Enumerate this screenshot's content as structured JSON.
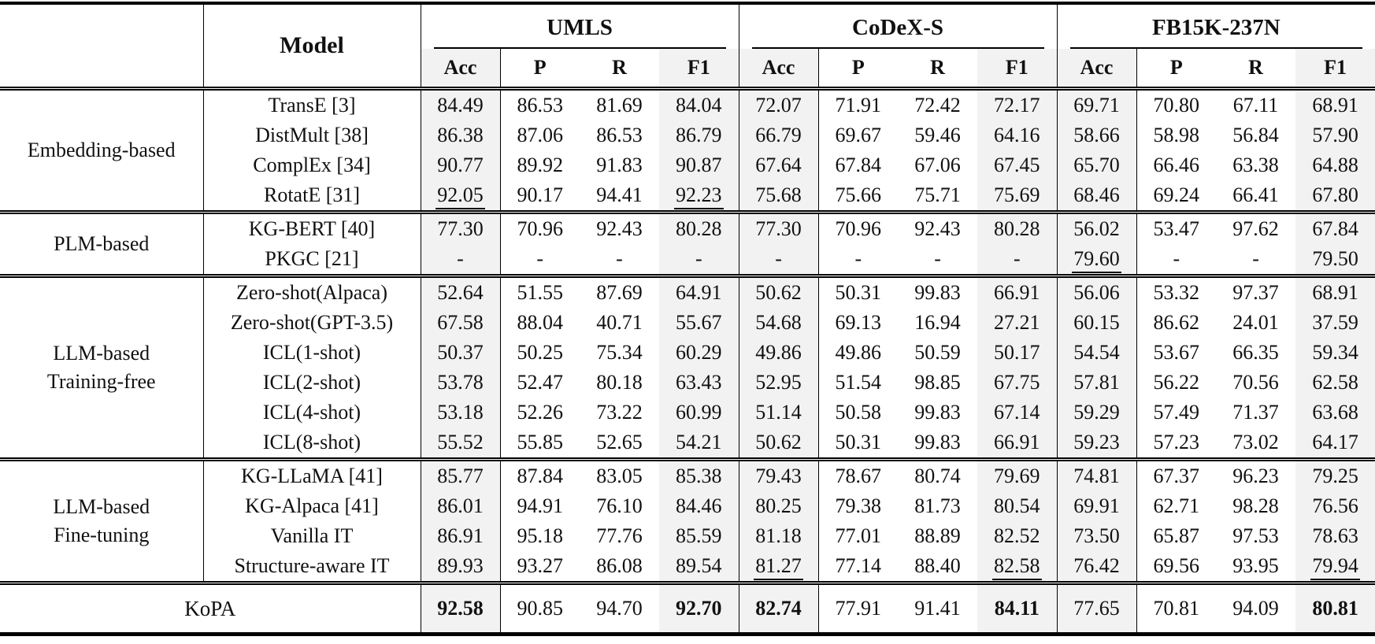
{
  "colors": {
    "shaded_column_bg": "#f2f2f2",
    "rule_color": "#000000",
    "text_color": "#111111"
  },
  "table": {
    "model_header": "Model",
    "datasets": [
      "UMLS",
      "CoDeX-S",
      "FB15K-237N"
    ],
    "metrics": [
      "Acc",
      "P",
      "R",
      "F1"
    ],
    "groups": [
      {
        "label": "Embedding-based",
        "rows": [
          {
            "model": "TransE [3]",
            "values": [
              "84.49",
              "86.53",
              "81.69",
              "84.04",
              "72.07",
              "71.91",
              "72.42",
              "72.17",
              "69.71",
              "70.80",
              "67.11",
              "68.91"
            ],
            "styles": [
              "",
              "",
              "",
              "",
              "",
              "",
              "",
              "",
              "",
              "",
              "",
              ""
            ]
          },
          {
            "model": "DistMult [38]",
            "values": [
              "86.38",
              "87.06",
              "86.53",
              "86.79",
              "66.79",
              "69.67",
              "59.46",
              "64.16",
              "58.66",
              "58.98",
              "56.84",
              "57.90"
            ],
            "styles": [
              "",
              "",
              "",
              "",
              "",
              "",
              "",
              "",
              "",
              "",
              "",
              ""
            ]
          },
          {
            "model": "ComplEx [34]",
            "values": [
              "90.77",
              "89.92",
              "91.83",
              "90.87",
              "67.64",
              "67.84",
              "67.06",
              "67.45",
              "65.70",
              "66.46",
              "63.38",
              "64.88"
            ],
            "styles": [
              "",
              "",
              "",
              "",
              "",
              "",
              "",
              "",
              "",
              "",
              "",
              ""
            ]
          },
          {
            "model": "RotatE [31]",
            "values": [
              "92.05",
              "90.17",
              "94.41",
              "92.23",
              "75.68",
              "75.66",
              "75.71",
              "75.69",
              "68.46",
              "69.24",
              "66.41",
              "67.80"
            ],
            "styles": [
              "u",
              "",
              "",
              "u",
              "",
              "",
              "",
              "",
              "",
              "",
              "",
              ""
            ]
          }
        ]
      },
      {
        "label": "PLM-based",
        "rows": [
          {
            "model": "KG-BERT [40]",
            "values": [
              "77.30",
              "70.96",
              "92.43",
              "80.28",
              "77.30",
              "70.96",
              "92.43",
              "80.28",
              "56.02",
              "53.47",
              "97.62",
              "67.84"
            ],
            "styles": [
              "",
              "",
              "",
              "",
              "",
              "",
              "",
              "",
              "",
              "",
              "",
              ""
            ]
          },
          {
            "model": "PKGC [21]",
            "values": [
              "-",
              "-",
              "-",
              "-",
              "-",
              "-",
              "-",
              "-",
              "79.60",
              "-",
              "-",
              "79.50"
            ],
            "styles": [
              "",
              "",
              "",
              "",
              "",
              "",
              "",
              "",
              "u",
              "",
              "",
              ""
            ]
          }
        ]
      },
      {
        "label": "LLM-based\nTraining-free",
        "rows": [
          {
            "model": "Zero-shot(Alpaca)",
            "values": [
              "52.64",
              "51.55",
              "87.69",
              "64.91",
              "50.62",
              "50.31",
              "99.83",
              "66.91",
              "56.06",
              "53.32",
              "97.37",
              "68.91"
            ],
            "styles": [
              "",
              "",
              "",
              "",
              "",
              "",
              "",
              "",
              "",
              "",
              "",
              ""
            ]
          },
          {
            "model": "Zero-shot(GPT-3.5)",
            "values": [
              "67.58",
              "88.04",
              "40.71",
              "55.67",
              "54.68",
              "69.13",
              "16.94",
              "27.21",
              "60.15",
              "86.62",
              "24.01",
              "37.59"
            ],
            "styles": [
              "",
              "",
              "",
              "",
              "",
              "",
              "",
              "",
              "",
              "",
              "",
              ""
            ]
          },
          {
            "model": "ICL(1-shot)",
            "values": [
              "50.37",
              "50.25",
              "75.34",
              "60.29",
              "49.86",
              "49.86",
              "50.59",
              "50.17",
              "54.54",
              "53.67",
              "66.35",
              "59.34"
            ],
            "styles": [
              "",
              "",
              "",
              "",
              "",
              "",
              "",
              "",
              "",
              "",
              "",
              ""
            ]
          },
          {
            "model": "ICL(2-shot)",
            "values": [
              "53.78",
              "52.47",
              "80.18",
              "63.43",
              "52.95",
              "51.54",
              "98.85",
              "67.75",
              "57.81",
              "56.22",
              "70.56",
              "62.58"
            ],
            "styles": [
              "",
              "",
              "",
              "",
              "",
              "",
              "",
              "",
              "",
              "",
              "",
              ""
            ]
          },
          {
            "model": "ICL(4-shot)",
            "values": [
              "53.18",
              "52.26",
              "73.22",
              "60.99",
              "51.14",
              "50.58",
              "99.83",
              "67.14",
              "59.29",
              "57.49",
              "71.37",
              "63.68"
            ],
            "styles": [
              "",
              "",
              "",
              "",
              "",
              "",
              "",
              "",
              "",
              "",
              "",
              ""
            ]
          },
          {
            "model": "ICL(8-shot)",
            "values": [
              "55.52",
              "55.85",
              "52.65",
              "54.21",
              "50.62",
              "50.31",
              "99.83",
              "66.91",
              "59.23",
              "57.23",
              "73.02",
              "64.17"
            ],
            "styles": [
              "",
              "",
              "",
              "",
              "",
              "",
              "",
              "",
              "",
              "",
              "",
              ""
            ]
          }
        ]
      },
      {
        "label": "LLM-based\nFine-tuning",
        "rows": [
          {
            "model": "KG-LLaMA [41]",
            "values": [
              "85.77",
              "87.84",
              "83.05",
              "85.38",
              "79.43",
              "78.67",
              "80.74",
              "79.69",
              "74.81",
              "67.37",
              "96.23",
              "79.25"
            ],
            "styles": [
              "",
              "",
              "",
              "",
              "",
              "",
              "",
              "",
              "",
              "",
              "",
              ""
            ]
          },
          {
            "model": "KG-Alpaca [41]",
            "values": [
              "86.01",
              "94.91",
              "76.10",
              "84.46",
              "80.25",
              "79.38",
              "81.73",
              "80.54",
              "69.91",
              "62.71",
              "98.28",
              "76.56"
            ],
            "styles": [
              "",
              "",
              "",
              "",
              "",
              "",
              "",
              "",
              "",
              "",
              "",
              ""
            ]
          },
          {
            "model": "Vanilla IT",
            "values": [
              "86.91",
              "95.18",
              "77.76",
              "85.59",
              "81.18",
              "77.01",
              "88.89",
              "82.52",
              "73.50",
              "65.87",
              "97.53",
              "78.63"
            ],
            "styles": [
              "",
              "",
              "",
              "",
              "",
              "",
              "",
              "",
              "",
              "",
              "",
              ""
            ]
          },
          {
            "model": "Structure-aware IT",
            "values": [
              "89.93",
              "93.27",
              "86.08",
              "89.54",
              "81.27",
              "77.14",
              "88.40",
              "82.58",
              "76.42",
              "69.56",
              "93.95",
              "79.94"
            ],
            "styles": [
              "",
              "",
              "",
              "",
              "u",
              "",
              "",
              "u",
              "",
              "",
              "",
              "u"
            ]
          }
        ]
      }
    ],
    "footer": {
      "label": "KoPA",
      "values": [
        "92.58",
        "90.85",
        "94.70",
        "92.70",
        "82.74",
        "77.91",
        "91.41",
        "84.11",
        "77.65",
        "70.81",
        "94.09",
        "80.81"
      ],
      "styles": [
        "b",
        "",
        "",
        "b",
        "b",
        "",
        "",
        "b",
        "",
        "",
        "",
        "b"
      ]
    }
  }
}
